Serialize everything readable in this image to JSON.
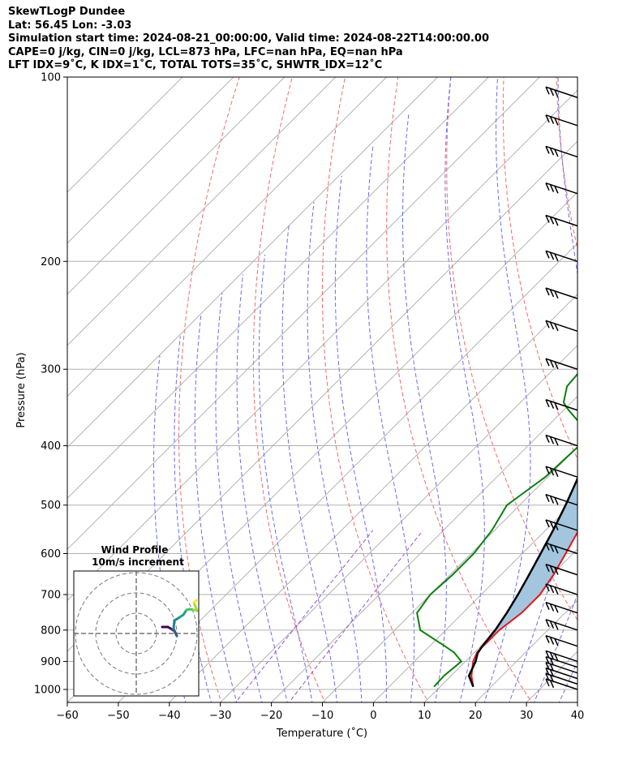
{
  "header": {
    "title": "SkewTLogP Dundee",
    "location": "Lat: 56.45   Lon: -3.03",
    "times": "Simulation start time: 2024-08-21_00:00:00, Valid time: 2024-08-22T14:00:00.00",
    "indices1": "CAPE=0 j/kg, CIN=0 j/kg, LCL=873 hPa, LFC=nan hPa, EQ=nan hPa",
    "indices2": "LFT IDX=9˚C, K IDX=1˚C, TOTAL TOTS=35˚C, SHWTR_IDX=12˚C"
  },
  "chart_data": {
    "type": "line",
    "xlabel": "Temperature (˚C)",
    "ylabel": "Pressure (hPa)",
    "xlim": [
      -60,
      40
    ],
    "ylim": [
      1050,
      100
    ],
    "y_scale": "log",
    "skew": "45deg",
    "x_ticks": [
      -60,
      -50,
      -40,
      -30,
      -20,
      -10,
      0,
      10,
      20,
      30,
      40
    ],
    "x_tick_labels": [
      "−60",
      "−50",
      "−40",
      "−30",
      "−20",
      "−10",
      "0",
      "10",
      "20",
      "30",
      "40"
    ],
    "y_ticks": [
      1000,
      900,
      800,
      700,
      600,
      500,
      400,
      300,
      200,
      100
    ],
    "y_tick_labels": [
      "1000",
      "900",
      "800",
      "700",
      "600",
      "500",
      "400",
      "300",
      "200",
      "100"
    ],
    "grid": true,
    "colors": {
      "temperature": "#e8141a",
      "dewpoint": "#0f7f0f",
      "parcel": "#000000",
      "shading": "#a3c6de",
      "dry_adiabat": "#f26a6a",
      "moist_adiabat": "#6b6bf2",
      "mixing_ratio": "#9c4fd0",
      "isotherm": "#aaaaaa"
    },
    "series": [
      {
        "role": "temperature",
        "points": [
          [
            990,
            16.5
          ],
          [
            950,
            14
          ],
          [
            900,
            11.5
          ],
          [
            870,
            10.5
          ],
          [
            800,
            10.5
          ],
          [
            750,
            11.5
          ],
          [
            700,
            11.5
          ],
          [
            650,
            10.3
          ],
          [
            600,
            8.5
          ],
          [
            550,
            6.5
          ],
          [
            500,
            4
          ],
          [
            450,
            1
          ],
          [
            400,
            -3
          ],
          [
            350,
            -6.5
          ],
          [
            330,
            -7.5
          ],
          [
            300,
            -8.5
          ],
          [
            270,
            -8.5
          ],
          [
            250,
            -8.5
          ],
          [
            220,
            -7.5
          ],
          [
            200,
            -3
          ],
          [
            185,
            -1.5
          ],
          [
            160,
            -2
          ],
          [
            140,
            0.5
          ],
          [
            120,
            5
          ],
          [
            110,
            9
          ],
          [
            100,
            14
          ]
        ]
      },
      {
        "role": "dewpoint",
        "points": [
          [
            990,
            8.8
          ],
          [
            950,
            8.6
          ],
          [
            900,
            9.2
          ],
          [
            870,
            6
          ],
          [
            850,
            3
          ],
          [
            800,
            -5
          ],
          [
            750,
            -9
          ],
          [
            700,
            -10
          ],
          [
            650,
            -9.5
          ],
          [
            600,
            -9.5
          ],
          [
            550,
            -10.5
          ],
          [
            500,
            -12.5
          ],
          [
            450,
            -10.5
          ],
          [
            400,
            -10
          ],
          [
            380,
            -11
          ],
          [
            350,
            -19
          ],
          [
            340,
            -21.5
          ],
          [
            320,
            -24
          ],
          [
            300,
            -24.5
          ],
          [
            280,
            -25
          ],
          [
            250,
            -26
          ],
          [
            220,
            -28
          ],
          [
            200,
            -30
          ],
          [
            190,
            -33
          ],
          [
            180,
            -34.5
          ],
          [
            170,
            -32
          ],
          [
            150,
            -30
          ],
          [
            130,
            -28
          ],
          [
            100,
            -22
          ]
        ]
      },
      {
        "role": "parcel",
        "points": [
          [
            990,
            16.5
          ],
          [
            950,
            13.5
          ],
          [
            900,
            12
          ],
          [
            873,
            10.8
          ],
          [
            850,
            10.3
          ],
          [
            800,
            9.7
          ],
          [
            750,
            8.6
          ],
          [
            700,
            7.2
          ],
          [
            650,
            5.5
          ],
          [
            600,
            3.6
          ],
          [
            550,
            1.5
          ],
          [
            500,
            -1
          ],
          [
            450,
            -4
          ],
          [
            400,
            -7.6
          ],
          [
            350,
            -12
          ],
          [
            300,
            -17.5
          ],
          [
            250,
            -24.5
          ],
          [
            200,
            -33.5
          ],
          [
            150,
            -46
          ],
          [
            100,
            -66
          ]
        ]
      }
    ],
    "wind_barbs_hPa": [
      1000,
      980,
      960,
      940,
      920,
      900,
      850,
      800,
      750,
      700,
      650,
      600,
      550,
      500,
      450,
      400,
      350,
      300,
      260,
      230,
      200,
      175,
      155,
      135,
      120,
      108
    ]
  },
  "inset": {
    "title": "Wind Profile",
    "subtitle": "10m/s increment"
  }
}
